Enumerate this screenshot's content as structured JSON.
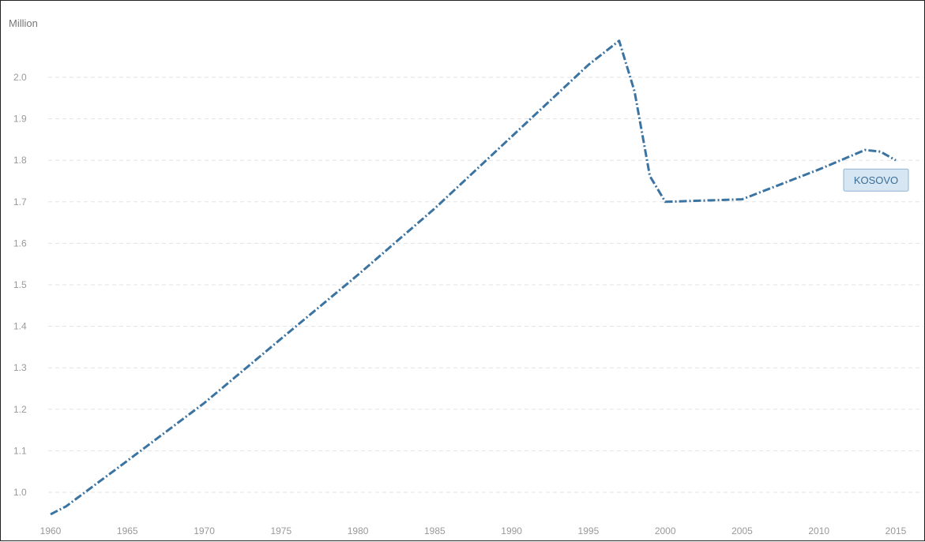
{
  "chart_data": {
    "type": "line",
    "ylabel": "Million",
    "ylim": [
      0.94,
      2.12
    ],
    "xlim": [
      1960,
      2016
    ],
    "y_ticks": [
      1.0,
      1.1,
      1.2,
      1.3,
      1.4,
      1.5,
      1.6,
      1.7,
      1.8,
      1.9,
      2.0
    ],
    "y_tick_labels": [
      "1.0",
      "1.1",
      "1.2",
      "1.3",
      "1.4",
      "1.5",
      "1.6",
      "1.7",
      "1.8",
      "1.9",
      "2.0"
    ],
    "x_ticks": [
      1960,
      1965,
      1970,
      1975,
      1980,
      1985,
      1990,
      1995,
      2000,
      2005,
      2010,
      2015
    ],
    "x_tick_labels": [
      "1960",
      "1965",
      "1970",
      "1975",
      "1980",
      "1985",
      "1990",
      "1995",
      "2000",
      "2005",
      "2010",
      "2015"
    ],
    "grid": true,
    "series": [
      {
        "name": "KOSOVO",
        "color": "#3b73a1",
        "x": [
          1960,
          1961,
          1965,
          1970,
          1975,
          1980,
          1985,
          1990,
          1995,
          1997,
          1998,
          1999,
          2000,
          2005,
          2010,
          2013,
          2014,
          2015
        ],
        "y": [
          0.947,
          0.966,
          1.076,
          1.215,
          1.37,
          1.524,
          1.684,
          1.857,
          2.03,
          2.088,
          1.966,
          1.762,
          1.7,
          1.706,
          1.778,
          1.825,
          1.821,
          1.8
        ]
      }
    ]
  }
}
